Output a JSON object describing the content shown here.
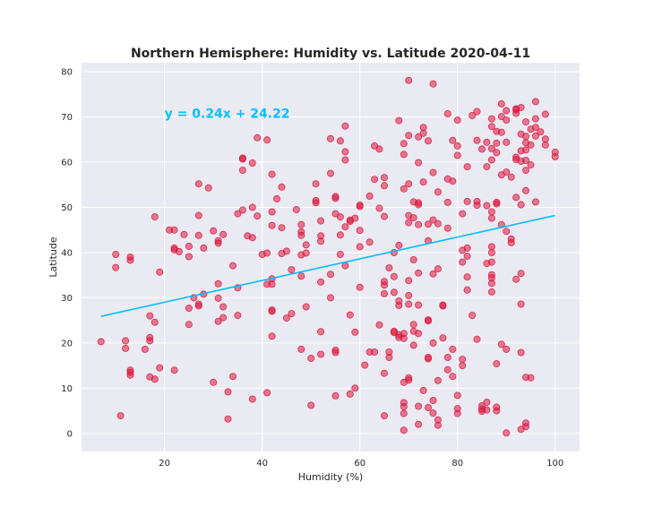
{
  "chart_data": {
    "type": "scatter",
    "title": "Northern Hemisphere: Humidity vs. Latitude 2020-04-11",
    "xlabel": "Humidity (%)",
    "ylabel": "Latitude",
    "xlim": [
      3,
      105
    ],
    "ylim": [
      -4,
      82
    ],
    "xticks": [
      20,
      40,
      60,
      80,
      100
    ],
    "yticks": [
      0,
      10,
      20,
      30,
      40,
      50,
      60,
      70,
      80
    ],
    "grid": true,
    "background_color": "#eaeaf2",
    "point_color": "#dc143c",
    "line_color": "#00bfff",
    "regression": {
      "slope": 0.24,
      "intercept": 24.22,
      "x_range": [
        7,
        100
      ]
    },
    "annotation": {
      "text": "y = 0.24x + 24.22",
      "x": 20,
      "y": 70
    },
    "points": [
      [
        7,
        20.3
      ],
      [
        10,
        39.6
      ],
      [
        10,
        36.7
      ],
      [
        11,
        3.9
      ],
      [
        12,
        20.5
      ],
      [
        12,
        18.8
      ],
      [
        13,
        39.0
      ],
      [
        13,
        38.3
      ],
      [
        13,
        14.0
      ],
      [
        13,
        13.5
      ],
      [
        13,
        12.9
      ],
      [
        16,
        18.6
      ],
      [
        17,
        26.0
      ],
      [
        17,
        21.2
      ],
      [
        17,
        20.5
      ],
      [
        17,
        12.5
      ],
      [
        18,
        24.6
      ],
      [
        18,
        12.0
      ],
      [
        18,
        47.9
      ],
      [
        19,
        35.7
      ],
      [
        19,
        14.5
      ],
      [
        21,
        45.0
      ],
      [
        22,
        45.0
      ],
      [
        22,
        41.0
      ],
      [
        22,
        40.6
      ],
      [
        22,
        14.0
      ],
      [
        23,
        40.2
      ],
      [
        24,
        44.0
      ],
      [
        25,
        41.4
      ],
      [
        25,
        39.1
      ],
      [
        25,
        27.7
      ],
      [
        25,
        24.1
      ],
      [
        26,
        30.0
      ],
      [
        27,
        55.2
      ],
      [
        27,
        48.2
      ],
      [
        27,
        43.8
      ],
      [
        27,
        28.6
      ],
      [
        27,
        28.2
      ],
      [
        28,
        30.8
      ],
      [
        28,
        41.0
      ],
      [
        29,
        54.3
      ],
      [
        30,
        11.3
      ],
      [
        30,
        44.8
      ],
      [
        31,
        42.6
      ],
      [
        31,
        42.1
      ],
      [
        31,
        33.1
      ],
      [
        31,
        29.9
      ],
      [
        31,
        24.8
      ],
      [
        32,
        28.0
      ],
      [
        32,
        44.0
      ],
      [
        32,
        25.6
      ],
      [
        33,
        9.2
      ],
      [
        33,
        3.2
      ],
      [
        34,
        37.1
      ],
      [
        34,
        12.6
      ],
      [
        35,
        26.1
      ],
      [
        35,
        32.2
      ],
      [
        35,
        48.6
      ],
      [
        36,
        49.4
      ],
      [
        36,
        60.9
      ],
      [
        36,
        60.7
      ],
      [
        37,
        43.7
      ],
      [
        36,
        58.2
      ],
      [
        38,
        43.3
      ],
      [
        38,
        50.0
      ],
      [
        38,
        59.8
      ],
      [
        38,
        7.6
      ],
      [
        39,
        65.4
      ],
      [
        39,
        48.1
      ],
      [
        40,
        39.6
      ],
      [
        41,
        33.0
      ],
      [
        41,
        64.9
      ],
      [
        41,
        39.9
      ],
      [
        41,
        9.0
      ],
      [
        42,
        34.2
      ],
      [
        42,
        27.3
      ],
      [
        42,
        27.0
      ],
      [
        42,
        21.5
      ],
      [
        42,
        46.0
      ],
      [
        42,
        49.0
      ],
      [
        42,
        57.3
      ],
      [
        42,
        33.0
      ],
      [
        43,
        51.9
      ],
      [
        44,
        54.5
      ],
      [
        44,
        39.8
      ],
      [
        44,
        45.5
      ],
      [
        45,
        40.3
      ],
      [
        45,
        25.5
      ],
      [
        46,
        26.5
      ],
      [
        46,
        36.2
      ],
      [
        47,
        49.5
      ],
      [
        48,
        46.2
      ],
      [
        48,
        44.6
      ],
      [
        48,
        43.8
      ],
      [
        48,
        39.5
      ],
      [
        48,
        34.8
      ],
      [
        48,
        18.6
      ],
      [
        49,
        41.7
      ],
      [
        49,
        39.9
      ],
      [
        49,
        28.0
      ],
      [
        50,
        6.2
      ],
      [
        50,
        16.6
      ],
      [
        51,
        51.5
      ],
      [
        51,
        51.0
      ],
      [
        51,
        55.2
      ],
      [
        52,
        43.7
      ],
      [
        52,
        42.5
      ],
      [
        52,
        33.5
      ],
      [
        52,
        17.5
      ],
      [
        52,
        22.5
      ],
      [
        52,
        47.0
      ],
      [
        54,
        65.2
      ],
      [
        54,
        57.5
      ],
      [
        54,
        35.2
      ],
      [
        54,
        30.0
      ],
      [
        55,
        52.4
      ],
      [
        55,
        52.0
      ],
      [
        55,
        48.6
      ],
      [
        55,
        18.4
      ],
      [
        55,
        17.9
      ],
      [
        55,
        8.3
      ],
      [
        56,
        64.7
      ],
      [
        56,
        47.9
      ],
      [
        56,
        43.9
      ],
      [
        56,
        39.6
      ],
      [
        57,
        68.0
      ],
      [
        57,
        62.3
      ],
      [
        57,
        60.5
      ],
      [
        57,
        45.7
      ],
      [
        57,
        37.1
      ],
      [
        58,
        46.9
      ],
      [
        58,
        26.2
      ],
      [
        58,
        8.7
      ],
      [
        58,
        47.2
      ],
      [
        59,
        47.6
      ],
      [
        59,
        22.4
      ],
      [
        59,
        10.0
      ],
      [
        60,
        50.2
      ],
      [
        60,
        50.5
      ],
      [
        60,
        41.3
      ],
      [
        60,
        32.3
      ],
      [
        60,
        44.9
      ],
      [
        61,
        15.1
      ],
      [
        62,
        42.3
      ],
      [
        62,
        52.5
      ],
      [
        62,
        18.0
      ],
      [
        63,
        63.6
      ],
      [
        63,
        56.2
      ],
      [
        63,
        18.0
      ],
      [
        64,
        62.9
      ],
      [
        64,
        49.8
      ],
      [
        64,
        24.0
      ],
      [
        65,
        56.6
      ],
      [
        65,
        54.8
      ],
      [
        65,
        48.0
      ],
      [
        65,
        33.6
      ],
      [
        65,
        32.8
      ],
      [
        65,
        30.9
      ],
      [
        65,
        13.3
      ],
      [
        65,
        3.9
      ],
      [
        66,
        36.6
      ],
      [
        66,
        18.0
      ],
      [
        66,
        16.8
      ],
      [
        67,
        40.0
      ],
      [
        67,
        34.7
      ],
      [
        67,
        31.2
      ],
      [
        67,
        22.3
      ],
      [
        67,
        22.6
      ],
      [
        68,
        69.2
      ],
      [
        68,
        41.6
      ],
      [
        68,
        29.3
      ],
      [
        68,
        28.3
      ],
      [
        68,
        21.8
      ],
      [
        68,
        21.2
      ],
      [
        69,
        64.1
      ],
      [
        69,
        61.7
      ],
      [
        69,
        54.1
      ],
      [
        69,
        22.1
      ],
      [
        69,
        21.0
      ],
      [
        69,
        11.3
      ],
      [
        69,
        6.8
      ],
      [
        69,
        5.9
      ],
      [
        69,
        4.4
      ],
      [
        69,
        0.7
      ],
      [
        70,
        78.1
      ],
      [
        70,
        65.9
      ],
      [
        70,
        55.2
      ],
      [
        70,
        48.2
      ],
      [
        70,
        46.6
      ],
      [
        70,
        33.8
      ],
      [
        70,
        30.5
      ],
      [
        70,
        28.6
      ],
      [
        70,
        12.3
      ],
      [
        70,
        11.8
      ],
      [
        71,
        51.2
      ],
      [
        71,
        47.7
      ],
      [
        71,
        38.4
      ],
      [
        71,
        24.1
      ],
      [
        71,
        22.6
      ],
      [
        71,
        19.5
      ],
      [
        72,
        65.6
      ],
      [
        72,
        59.9
      ],
      [
        72,
        51.0
      ],
      [
        72,
        50.6
      ],
      [
        72,
        46.2
      ],
      [
        72,
        35.5
      ],
      [
        72,
        28.4
      ],
      [
        72,
        22.1
      ],
      [
        72,
        6.0
      ],
      [
        72,
        2.0
      ],
      [
        73,
        67.7
      ],
      [
        73,
        66.4
      ],
      [
        73,
        55.6
      ],
      [
        73,
        9.5
      ],
      [
        74,
        64.7
      ],
      [
        74,
        46.3
      ],
      [
        74,
        42.6
      ],
      [
        74,
        25.1
      ],
      [
        74,
        24.9
      ],
      [
        74,
        16.8
      ],
      [
        74,
        16.5
      ],
      [
        74,
        5.7
      ],
      [
        75,
        77.3
      ],
      [
        75,
        57.7
      ],
      [
        75,
        47.2
      ],
      [
        75,
        35.3
      ],
      [
        75,
        20.0
      ],
      [
        75,
        7.3
      ],
      [
        75,
        4.5
      ],
      [
        76,
        53.4
      ],
      [
        76,
        46.4
      ],
      [
        76,
        36.4
      ],
      [
        76,
        11.7
      ],
      [
        76,
        3.0
      ],
      [
        76,
        1.8
      ],
      [
        77,
        28.4
      ],
      [
        77,
        28.2
      ],
      [
        77,
        21.1
      ],
      [
        78,
        70.7
      ],
      [
        78,
        56.3
      ],
      [
        78,
        51.1
      ],
      [
        78,
        45.4
      ],
      [
        78,
        16.8
      ],
      [
        78,
        14.1
      ],
      [
        79,
        55.8
      ],
      [
        79,
        64.8
      ],
      [
        79,
        18.6
      ],
      [
        79,
        12.6
      ],
      [
        80,
        69.3
      ],
      [
        80,
        63.6
      ],
      [
        80,
        61.5
      ],
      [
        80,
        8.4
      ],
      [
        80,
        5.5
      ],
      [
        80,
        4.4
      ],
      [
        81,
        48.6
      ],
      [
        81,
        40.5
      ],
      [
        81,
        37.9
      ],
      [
        81,
        16.4
      ],
      [
        81,
        15.0
      ],
      [
        82,
        59.0
      ],
      [
        82,
        51.3
      ],
      [
        82,
        39.2
      ],
      [
        82,
        34.6
      ],
      [
        82,
        31.7
      ],
      [
        82,
        41.0
      ],
      [
        83,
        70.3
      ],
      [
        83,
        26.1
      ],
      [
        84,
        71.2
      ],
      [
        84,
        64.8
      ],
      [
        84,
        51.3
      ],
      [
        84,
        50.5
      ],
      [
        84,
        20.8
      ],
      [
        85,
        62.9
      ],
      [
        85,
        6.1
      ],
      [
        85,
        5.4
      ],
      [
        85,
        4.9
      ],
      [
        86,
        64.4
      ],
      [
        86,
        59.0
      ],
      [
        86,
        50.4
      ],
      [
        86,
        37.6
      ],
      [
        86,
        6.9
      ],
      [
        86,
        5.2
      ],
      [
        87,
        69.6
      ],
      [
        87,
        67.9
      ],
      [
        87,
        63.0
      ],
      [
        87,
        60.5
      ],
      [
        87,
        41.3
      ],
      [
        87,
        40.0
      ],
      [
        87,
        37.9
      ],
      [
        87,
        35.1
      ],
      [
        87,
        34.4
      ],
      [
        87,
        33.2
      ],
      [
        87,
        31.3
      ],
      [
        87,
        49.0
      ],
      [
        87,
        47.6
      ],
      [
        88,
        66.8
      ],
      [
        88,
        64.2
      ],
      [
        88,
        62.1
      ],
      [
        88,
        51.1
      ],
      [
        88,
        50.8
      ],
      [
        88,
        15.4
      ],
      [
        88,
        5.8
      ],
      [
        88,
        5.0
      ],
      [
        89,
        72.9
      ],
      [
        89,
        70.1
      ],
      [
        89,
        66.6
      ],
      [
        89,
        57.2
      ],
      [
        89,
        46.2
      ],
      [
        89,
        19.7
      ],
      [
        90,
        71.4
      ],
      [
        90,
        69.3
      ],
      [
        90,
        64.4
      ],
      [
        90,
        57.8
      ],
      [
        90,
        44.7
      ],
      [
        90,
        18.6
      ],
      [
        90,
        0.1
      ],
      [
        91,
        56.7
      ],
      [
        91,
        43.0
      ],
      [
        91,
        42.2
      ],
      [
        92,
        71.6
      ],
      [
        92,
        71.8
      ],
      [
        92,
        70.8
      ],
      [
        92,
        61.1
      ],
      [
        92,
        60.6
      ],
      [
        92,
        52.2
      ],
      [
        92,
        34.1
      ],
      [
        93,
        72.1
      ],
      [
        93,
        66.2
      ],
      [
        93,
        62.5
      ],
      [
        93,
        60.2
      ],
      [
        93,
        50.6
      ],
      [
        93,
        35.4
      ],
      [
        93,
        28.6
      ],
      [
        93,
        17.9
      ],
      [
        93,
        0.9
      ],
      [
        94,
        68.9
      ],
      [
        94,
        65.7
      ],
      [
        94,
        64.3
      ],
      [
        94,
        62.7
      ],
      [
        94,
        60.4
      ],
      [
        94,
        58.2
      ],
      [
        94,
        53.7
      ],
      [
        94,
        12.4
      ],
      [
        94,
        2.3
      ],
      [
        94,
        1.5
      ],
      [
        95,
        67.3
      ],
      [
        95,
        63.8
      ],
      [
        95,
        59.4
      ],
      [
        95,
        12.3
      ],
      [
        96,
        73.4
      ],
      [
        96,
        69.6
      ],
      [
        96,
        67.7
      ],
      [
        96,
        65.8
      ],
      [
        96,
        51.2
      ],
      [
        97,
        66.7
      ],
      [
        98,
        70.6
      ],
      [
        98,
        65.1
      ],
      [
        98,
        63.8
      ],
      [
        100,
        62.2
      ],
      [
        100,
        61.2
      ]
    ]
  }
}
